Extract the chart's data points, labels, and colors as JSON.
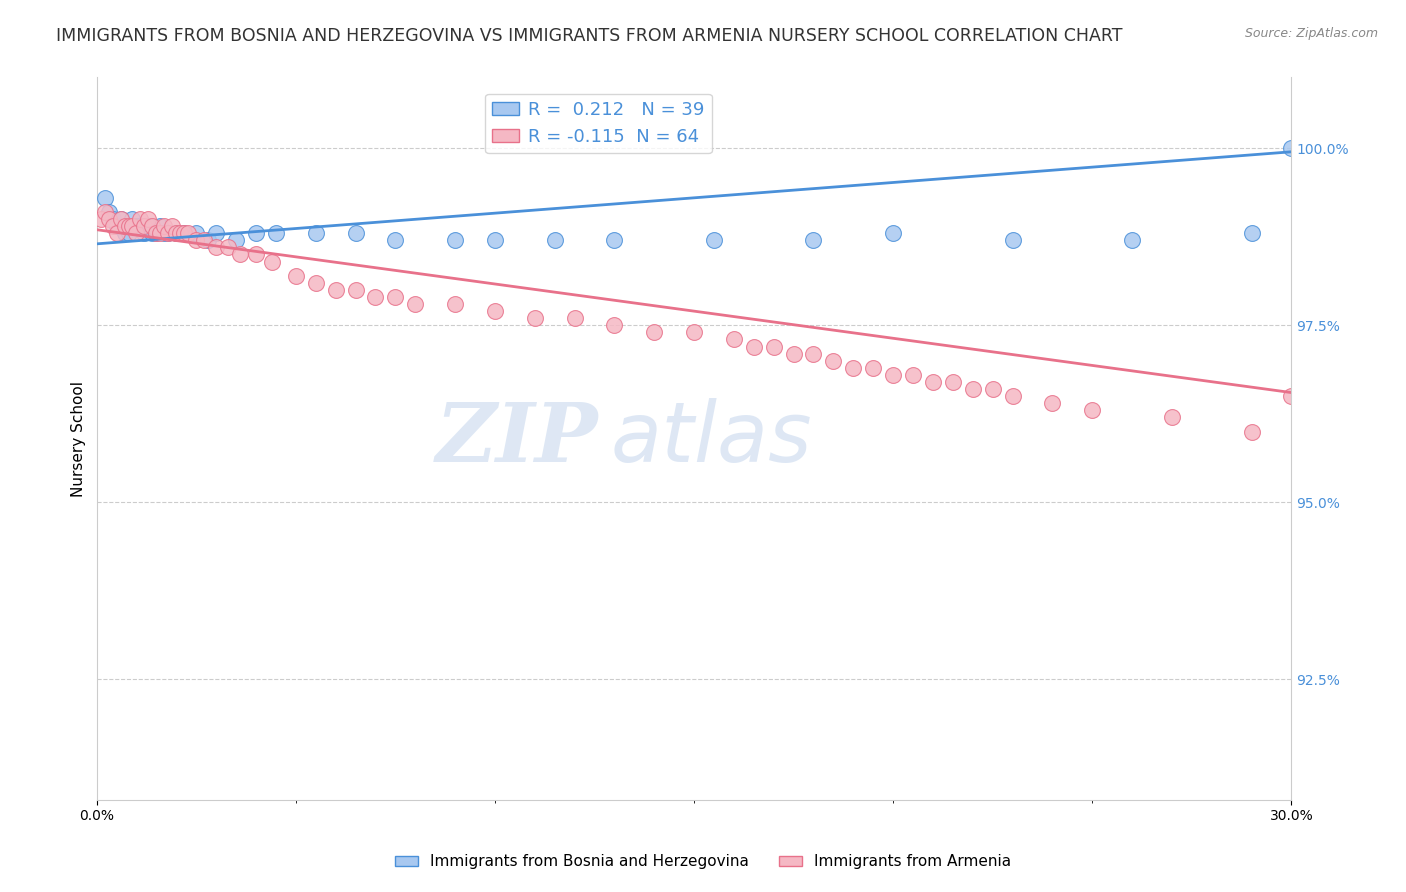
{
  "title": "IMMIGRANTS FROM BOSNIA AND HERZEGOVINA VS IMMIGRANTS FROM ARMENIA NURSERY SCHOOL CORRELATION CHART",
  "source_text": "Source: ZipAtlas.com",
  "ylabel": "Nursery School",
  "xlim": [
    0.0,
    0.3
  ],
  "ylim": [
    0.908,
    1.01
  ],
  "ytick_vals": [
    0.925,
    0.95,
    0.975,
    1.0
  ],
  "ytick_labels": [
    "92.5%",
    "95.0%",
    "97.5%",
    "100.0%"
  ],
  "xtick_vals": [
    0.0,
    0.3
  ],
  "xtick_labels": [
    "0.0%",
    "30.0%"
  ],
  "blue_R": 0.212,
  "blue_N": 39,
  "pink_R": -0.115,
  "pink_N": 64,
  "blue_color": "#a8c8f0",
  "pink_color": "#f5b8c4",
  "blue_line_color": "#4a90d9",
  "pink_line_color": "#e8718a",
  "legend_label_blue": "Immigrants from Bosnia and Herzegovina",
  "legend_label_pink": "Immigrants from Armenia",
  "blue_x": [
    0.002,
    0.003,
    0.004,
    0.005,
    0.006,
    0.007,
    0.008,
    0.009,
    0.01,
    0.011,
    0.012,
    0.013,
    0.014,
    0.015,
    0.016,
    0.017,
    0.018,
    0.02,
    0.022,
    0.025,
    0.028,
    0.03,
    0.035,
    0.04,
    0.045,
    0.055,
    0.065,
    0.075,
    0.09,
    0.1,
    0.115,
    0.13,
    0.155,
    0.18,
    0.2,
    0.23,
    0.26,
    0.29,
    0.3
  ],
  "blue_y": [
    0.993,
    0.991,
    0.99,
    0.989,
    0.99,
    0.988,
    0.988,
    0.99,
    0.989,
    0.989,
    0.988,
    0.989,
    0.988,
    0.988,
    0.989,
    0.988,
    0.988,
    0.988,
    0.988,
    0.988,
    0.987,
    0.988,
    0.987,
    0.988,
    0.988,
    0.988,
    0.988,
    0.987,
    0.987,
    0.987,
    0.987,
    0.987,
    0.987,
    0.987,
    0.988,
    0.987,
    0.987,
    0.988,
    1.0
  ],
  "pink_x": [
    0.001,
    0.002,
    0.003,
    0.004,
    0.005,
    0.006,
    0.007,
    0.008,
    0.009,
    0.01,
    0.011,
    0.012,
    0.013,
    0.014,
    0.015,
    0.016,
    0.017,
    0.018,
    0.019,
    0.02,
    0.021,
    0.022,
    0.023,
    0.025,
    0.027,
    0.03,
    0.033,
    0.036,
    0.04,
    0.044,
    0.05,
    0.055,
    0.06,
    0.065,
    0.07,
    0.075,
    0.08,
    0.09,
    0.1,
    0.11,
    0.12,
    0.13,
    0.14,
    0.15,
    0.16,
    0.165,
    0.17,
    0.175,
    0.18,
    0.185,
    0.19,
    0.195,
    0.2,
    0.205,
    0.21,
    0.215,
    0.22,
    0.225,
    0.23,
    0.24,
    0.25,
    0.27,
    0.29,
    0.3
  ],
  "pink_y": [
    0.99,
    0.991,
    0.99,
    0.989,
    0.988,
    0.99,
    0.989,
    0.989,
    0.989,
    0.988,
    0.99,
    0.989,
    0.99,
    0.989,
    0.988,
    0.988,
    0.989,
    0.988,
    0.989,
    0.988,
    0.988,
    0.988,
    0.988,
    0.987,
    0.987,
    0.986,
    0.986,
    0.985,
    0.985,
    0.984,
    0.982,
    0.981,
    0.98,
    0.98,
    0.979,
    0.979,
    0.978,
    0.978,
    0.977,
    0.976,
    0.976,
    0.975,
    0.974,
    0.974,
    0.973,
    0.972,
    0.972,
    0.971,
    0.971,
    0.97,
    0.969,
    0.969,
    0.968,
    0.968,
    0.967,
    0.967,
    0.966,
    0.966,
    0.965,
    0.964,
    0.963,
    0.962,
    0.96,
    0.965
  ],
  "watermark_zip": "ZIP",
  "watermark_atlas": "atlas",
  "watermark_color": "#c8d8ee",
  "watermark_alpha": 0.6,
  "background_color": "#ffffff",
  "grid_color": "#cccccc",
  "axis_color": "#cccccc",
  "title_fontsize": 12.5,
  "label_fontsize": 11,
  "tick_fontsize": 10,
  "legend_fontsize": 13
}
